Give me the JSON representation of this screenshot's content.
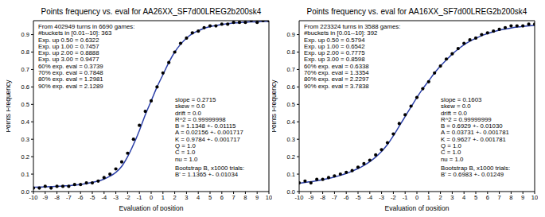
{
  "chart_data": [
    {
      "type": "scatter",
      "title": "Points frequency vs. eval for AA26XX_SF7d00LREG2b200sk4",
      "x_label": "Evaluation of position",
      "y_label": "Points Frequency",
      "xlim": [
        -10,
        10
      ],
      "xticks": [
        -10,
        -9,
        -8,
        -7,
        -6,
        -5,
        -4,
        -3,
        -2,
        -1,
        0,
        1,
        2,
        3,
        4,
        5,
        6,
        7,
        8,
        9,
        10
      ],
      "ylim": [
        0,
        0.98
      ],
      "yticks": [
        {
          "value": 0,
          "label": "0.0"
        },
        {
          "value": 0.1,
          "label": "0.1"
        },
        {
          "value": 0.2,
          "label": "0.2"
        },
        {
          "value": 0.3,
          "label": "0.3"
        },
        {
          "value": 0.4,
          "label": "0.4"
        },
        {
          "value": 0.5,
          "label": "0.5"
        },
        {
          "value": 0.6,
          "label": "0.6"
        },
        {
          "value": 0.7,
          "label": "0.7"
        },
        {
          "value": 0.8,
          "label": "0.8"
        },
        {
          "value": 0.9,
          "label": "0.9"
        }
      ],
      "grid": false,
      "x": [
        -10,
        -9.5,
        -9,
        -8.5,
        -8,
        -7.5,
        -7,
        -6.5,
        -6,
        -5.5,
        -5,
        -4.5,
        -4,
        -3.5,
        -3,
        -2.5,
        -2,
        -1.5,
        -1,
        -0.5,
        0,
        0.5,
        1,
        1.5,
        2,
        2.5,
        3,
        3.5,
        4,
        4.5,
        5,
        5.5,
        6,
        6.5,
        7,
        7.5,
        8,
        8.5,
        9,
        9.5,
        10
      ],
      "series": [
        {
          "type": "scatter",
          "color": "#000000",
          "marker": "circle",
          "values": [
            0.02,
            0.02,
            0.03,
            0.02,
            0.03,
            0.03,
            0.03,
            0.04,
            0.04,
            0.05,
            0.05,
            0.06,
            0.08,
            0.1,
            0.13,
            0.17,
            0.22,
            0.3,
            0.38,
            0.46,
            0.52,
            0.6,
            0.68,
            0.74,
            0.8,
            0.85,
            0.88,
            0.91,
            0.92,
            0.94,
            0.95,
            0.95,
            0.96,
            0.96,
            0.97,
            0.97,
            0.97,
            0.98,
            0.97,
            0.98,
            0.98
          ]
        },
        {
          "type": "line",
          "color": "#2b3fa8",
          "line_style": "solid",
          "values": [
            0.025,
            0.026,
            0.027,
            0.028,
            0.03,
            0.032,
            0.034,
            0.037,
            0.041,
            0.046,
            0.052,
            0.06,
            0.072,
            0.088,
            0.11,
            0.145,
            0.2,
            0.27,
            0.35,
            0.44,
            0.52,
            0.6,
            0.67,
            0.74,
            0.8,
            0.845,
            0.88,
            0.905,
            0.922,
            0.936,
            0.946,
            0.953,
            0.958,
            0.963,
            0.966,
            0.969,
            0.971,
            0.973,
            0.974,
            0.975,
            0.976
          ]
        }
      ],
      "annotations": {
        "summary": [
          "From 402949 turns in 6690 games:",
          "#buckets in [0.01--10]: 363",
          "Exp. up 0.50 = 0.6322",
          "Exp. up 1.00 = 0.7457",
          "Exp. up 2.00 = 0.8888",
          "Exp. up 3.00 = 0.9477",
          "60% exp. eval = 0.3739",
          "70% exp. eval = 0.7848",
          "80% exp. eval = 1.2981",
          "90% exp. eval = 2.1289"
        ],
        "fit": [
          "slope = 0.2715",
          "skew = 0.0",
          "drift = 0.0",
          "R^2 = 0.99999998",
          "B = 1.1348 +- 0.01115",
          "A = 0.02156 +- 0.001717",
          "K = 0.9784 +- 0.001717",
          "Q = 1.0",
          "C = 1.0",
          "nu = 1.0"
        ],
        "bootstrap": [
          "Bootstrap B, x1000 trials:",
          "B' = 1.1365 +- 0.01034"
        ]
      }
    },
    {
      "type": "scatter",
      "title": "Points frequency vs. eval for AA16XX_SF7d00LREG2b200sk4",
      "x_label": "Evaluation of position",
      "y_label": "Points Frequency",
      "xlim": [
        -10,
        10
      ],
      "xticks": [
        -10,
        -9,
        -8,
        -7,
        -6,
        -5,
        -4,
        -3,
        -2,
        -1,
        0,
        1,
        2,
        3,
        4,
        5,
        6,
        7,
        8,
        9,
        10
      ],
      "ylim": [
        0,
        0.98
      ],
      "yticks": [
        {
          "value": 0,
          "label": "0.0"
        },
        {
          "value": 0.1,
          "label": "0.1"
        },
        {
          "value": 0.2,
          "label": "0.2"
        },
        {
          "value": 0.3,
          "label": "0.3"
        },
        {
          "value": 0.4,
          "label": "0.4"
        },
        {
          "value": 0.5,
          "label": "0.5"
        },
        {
          "value": 0.6,
          "label": "0.6"
        },
        {
          "value": 0.7,
          "label": "0.7"
        },
        {
          "value": 0.8,
          "label": "0.8"
        },
        {
          "value": 0.9,
          "label": "0.9"
        }
      ],
      "grid": false,
      "x": [
        -10,
        -9.5,
        -9,
        -8.5,
        -8,
        -7.5,
        -7,
        -6.5,
        -6,
        -5.5,
        -5,
        -4.5,
        -4,
        -3.5,
        -3,
        -2.5,
        -2,
        -1.5,
        -1,
        -0.5,
        0,
        0.5,
        1,
        1.5,
        2,
        2.5,
        3,
        3.5,
        4,
        4.5,
        5,
        5.5,
        6,
        6.5,
        7,
        7.5,
        8,
        8.5,
        9,
        9.5,
        10
      ],
      "series": [
        {
          "type": "scatter",
          "color": "#000000",
          "marker": "circle",
          "values": [
            0.05,
            0.06,
            0.05,
            0.07,
            0.07,
            0.08,
            0.09,
            0.1,
            0.11,
            0.12,
            0.14,
            0.16,
            0.18,
            0.21,
            0.24,
            0.28,
            0.33,
            0.39,
            0.44,
            0.49,
            0.54,
            0.59,
            0.63,
            0.68,
            0.72,
            0.76,
            0.79,
            0.82,
            0.85,
            0.87,
            0.88,
            0.9,
            0.91,
            0.92,
            0.93,
            0.94,
            0.95,
            0.95,
            0.95,
            0.96,
            0.96
          ]
        },
        {
          "type": "line",
          "color": "#2b3fa8",
          "line_style": "solid",
          "values": [
            0.048,
            0.052,
            0.057,
            0.062,
            0.068,
            0.075,
            0.083,
            0.093,
            0.104,
            0.117,
            0.132,
            0.15,
            0.172,
            0.198,
            0.23,
            0.27,
            0.32,
            0.375,
            0.43,
            0.485,
            0.54,
            0.59,
            0.635,
            0.68,
            0.72,
            0.755,
            0.788,
            0.817,
            0.842,
            0.862,
            0.879,
            0.894,
            0.906,
            0.916,
            0.925,
            0.932,
            0.938,
            0.943,
            0.947,
            0.95,
            0.953
          ]
        }
      ],
      "annotations": {
        "summary": [
          "From 223324 turns in 3588 games:",
          "#buckets in [0.01--10]: 392",
          "Exp. up 0.50 = 0.5794",
          "Exp. up 1.00 = 0.6542",
          "Exp. up 2.00 = 0.7775",
          "Exp. up 3.00 = 0.8598",
          "60% exp. eval = 0.6338",
          "70% exp. eval = 1.3354",
          "80% exp. eval = 2.2297",
          "90% exp. eval = 3.7838"
        ],
        "fit": [
          "slope = 0.1603",
          "skew = 0.0",
          "drift = 0.0",
          "R^2 = 0.99999999",
          "B = 0.6929 +- 0.01030",
          "A = 0.03731 +- 0.001781",
          "K = 0.9627 +- 0.001781",
          "Q = 1.0",
          "C = 1.0",
          "nu = 1.0"
        ],
        "bootstrap": [
          "Bootstrap B, x1000 trials:",
          "B' = 0.6983 +- 0.01249"
        ]
      }
    }
  ]
}
